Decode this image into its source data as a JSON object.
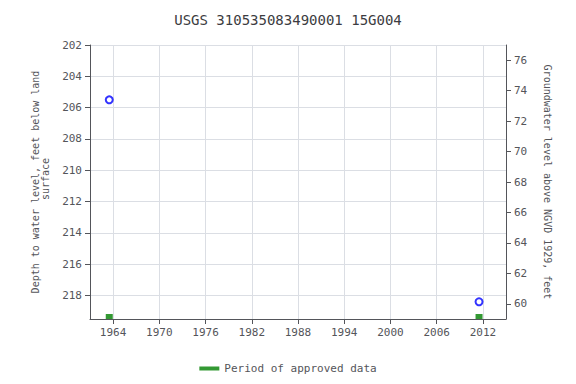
{
  "chart_data": {
    "type": "scatter",
    "title": "USGS 310535083490001 15G004",
    "ylabel": "Depth to water level, feet below land\n surface",
    "y2label": "Groundwater level above NGVD 1929, feet",
    "xlim": [
      1961,
      2015
    ],
    "xticks": [
      1964,
      1970,
      1976,
      1982,
      1988,
      1994,
      2000,
      2006,
      2012
    ],
    "ylim": [
      219.5,
      202
    ],
    "yticks": [
      202,
      204,
      206,
      208,
      210,
      212,
      214,
      216,
      218
    ],
    "y2lim": [
      59,
      77
    ],
    "y2ticks": [
      60,
      62,
      64,
      66,
      68,
      70,
      72,
      74,
      76
    ],
    "grid": true,
    "legend": "bottom",
    "series": [
      {
        "type": "scatter",
        "color": "#0000ff",
        "marker": "hollow-circle",
        "x": [
          1963.5,
          2011.5
        ],
        "values": [
          205.5,
          218.4
        ]
      },
      {
        "name": "Period of approved data",
        "type": "bar",
        "color": "#008000",
        "marker": "square",
        "x": [
          1963.5,
          2011.5
        ],
        "values": [
          219.5,
          219.5
        ]
      }
    ]
  }
}
